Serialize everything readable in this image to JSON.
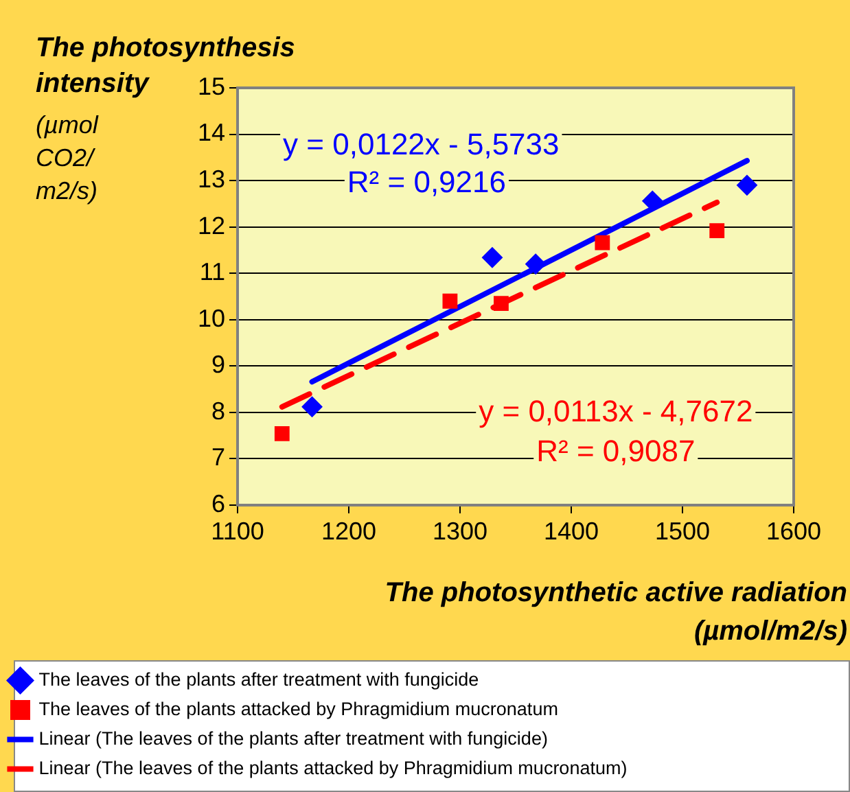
{
  "chart_data": {
    "type": "scatter",
    "title": "The photosynthesis intensity",
    "ylabel": "(µmol CO2/ m2/s)",
    "xlabel": "The photosynthetic active radiation (µmol/m2/s)",
    "xlim": [
      1100,
      1600
    ],
    "xticks": [
      1100,
      1200,
      1300,
      1400,
      1500,
      1600
    ],
    "ylim": [
      6,
      15
    ],
    "yticks": [
      6,
      7,
      8,
      9,
      10,
      11,
      12,
      13,
      14,
      15
    ],
    "grid": "y",
    "legend": "bottom",
    "series": [
      {
        "name": "The leaves of the plants after treatment with fungicide",
        "type": "scatter",
        "marker": "diamond",
        "color": "#0000ff",
        "x": [
          1167,
          1329,
          1368,
          1473,
          1558
        ],
        "values": [
          8.12,
          11.34,
          11.2,
          12.56,
          12.9
        ]
      },
      {
        "name": "The leaves of the plants attacked by Phragmidium mucronatum",
        "type": "scatter",
        "marker": "square",
        "color": "#ff0000",
        "x": [
          1140,
          1291,
          1337,
          1428,
          1531
        ],
        "values": [
          7.54,
          10.4,
          10.35,
          11.66,
          11.92
        ]
      },
      {
        "name": "Linear (The leaves of the plants after treatment with fungicide)",
        "type": "line",
        "line_style": "solid",
        "color": "#0000ff",
        "x": [
          1167,
          1558
        ],
        "values": [
          8.66,
          13.43
        ]
      },
      {
        "name": "Linear (The leaves of the plants attacked by Phragmidium mucronatum)",
        "type": "line",
        "line_style": "dashed",
        "color": "#ff0000",
        "x": [
          1140,
          1531
        ],
        "values": [
          8.12,
          12.53
        ]
      }
    ],
    "annotations": [
      "y = 0,0122x - 5,5733",
      "R² = 0,9216",
      "y = 0,0113x - 4,7672",
      "R² = 0,9087"
    ]
  }
}
